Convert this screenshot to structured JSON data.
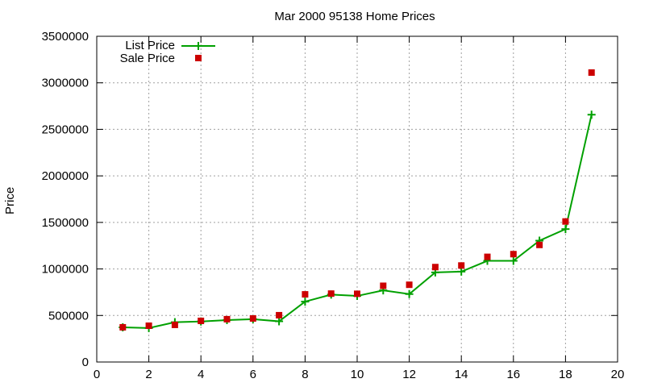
{
  "chart_data": {
    "type": "line",
    "title": "Mar 2000 95138 Home Prices",
    "xlabel": "",
    "ylabel": "Price",
    "xlim": [
      0,
      20
    ],
    "ylim": [
      0,
      3500000
    ],
    "x_ticks": [
      0,
      2,
      4,
      6,
      8,
      10,
      12,
      14,
      16,
      18,
      20
    ],
    "y_ticks": [
      0,
      500000,
      1000000,
      1500000,
      2000000,
      2500000,
      3000000,
      3500000
    ],
    "grid": true,
    "legend_position": "top-left",
    "x": [
      1,
      2,
      3,
      4,
      5,
      6,
      7,
      8,
      9,
      10,
      11,
      12,
      13,
      14,
      15,
      16,
      17,
      18,
      19
    ],
    "series": [
      {
        "name": "List Price",
        "style": "linespoints",
        "marker": "plus",
        "color": "#00a000",
        "values": [
          373000,
          365000,
          428000,
          435000,
          450000,
          460000,
          437000,
          649000,
          724000,
          710000,
          770000,
          730000,
          963000,
          971000,
          1087000,
          1087000,
          1304000,
          1428000,
          2658000
        ]
      },
      {
        "name": "Sale Price",
        "style": "points",
        "marker": "square",
        "color": "#cc0000",
        "values": [
          373000,
          390000,
          399000,
          442000,
          460000,
          468000,
          503000,
          727000,
          735000,
          733000,
          819000,
          830000,
          1020000,
          1037000,
          1130000,
          1159000,
          1258000,
          1510000,
          3110000
        ]
      }
    ]
  }
}
